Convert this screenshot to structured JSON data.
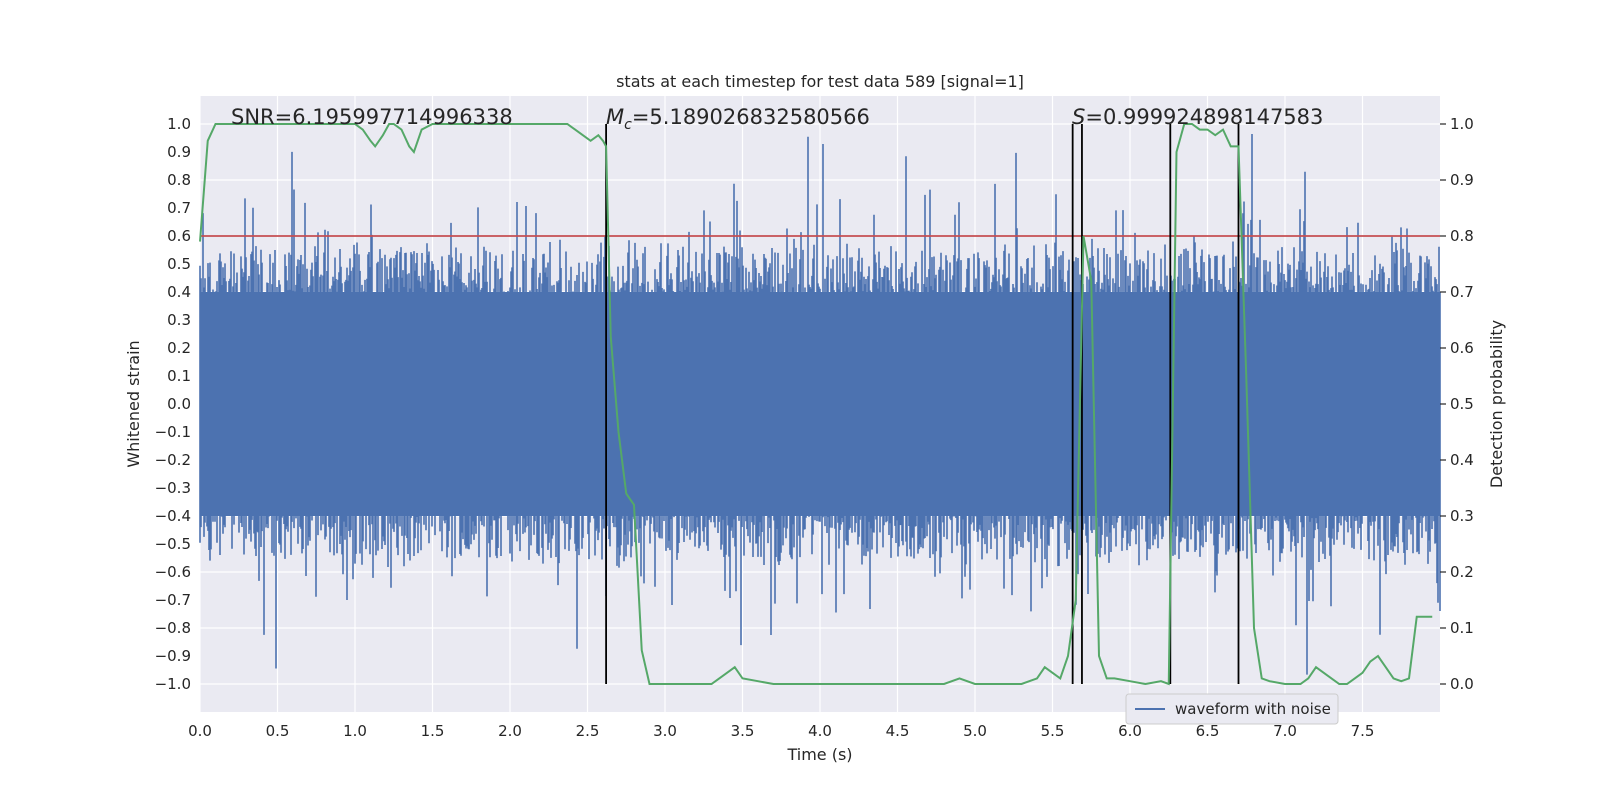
{
  "chart_data": {
    "type": "line",
    "title": "stats at each timestep for test data 589 [signal=1]",
    "xlabel": "Time (s)",
    "ylabel": "Whitened strain",
    "ylabel_right": "Detection probability",
    "xlim": [
      0.0,
      8.0
    ],
    "ylim": [
      -1.1,
      1.1
    ],
    "ylim_right": [
      -0.05,
      1.05
    ],
    "x_ticks": [
      "0.0",
      "0.5",
      "1.0",
      "1.5",
      "2.0",
      "2.5",
      "3.0",
      "3.5",
      "4.0",
      "4.5",
      "5.0",
      "5.5",
      "6.0",
      "6.5",
      "7.0",
      "7.5"
    ],
    "x_tick_values": [
      0,
      0.5,
      1,
      1.5,
      2,
      2.5,
      3,
      3.5,
      4,
      4.5,
      5,
      5.5,
      6,
      6.5,
      7,
      7.5
    ],
    "y_ticks": [
      "1.0",
      "0.9",
      "0.8",
      "0.7",
      "0.6",
      "0.5",
      "0.4",
      "0.3",
      "0.2",
      "0.1",
      "0.0",
      "−0.1",
      "−0.2",
      "−0.3",
      "−0.4",
      "−0.5",
      "−0.6",
      "−0.7",
      "−0.8",
      "−0.9",
      "−1.0"
    ],
    "y_tick_values": [
      1.0,
      0.9,
      0.8,
      0.7,
      0.6,
      0.5,
      0.4,
      0.3,
      0.2,
      0.1,
      0.0,
      -0.1,
      -0.2,
      -0.3,
      -0.4,
      -0.5,
      -0.6,
      -0.7,
      -0.8,
      -0.9,
      -1.0
    ],
    "y_right_ticks": [
      "1.0",
      "0.9",
      "0.8",
      "0.7",
      "0.6",
      "0.5",
      "0.4",
      "0.3",
      "0.2",
      "0.1",
      "0.0"
    ],
    "y_right_tick_values": [
      1.0,
      0.9,
      0.8,
      0.7,
      0.6,
      0.5,
      0.4,
      0.3,
      0.2,
      0.1,
      0.0
    ],
    "annotations": {
      "snr": "SNR=6.195997714996338",
      "mc_symbol": "M",
      "mc_sub": "c",
      "mc_value": "=5.189026832580566",
      "s_symbol": "S",
      "s_value": "=0.999924898147583"
    },
    "threshold": 0.6,
    "vertical_lines": [
      2.62,
      5.63,
      5.69,
      6.26,
      6.7
    ],
    "legend": [
      "waveform with noise"
    ],
    "series": [
      {
        "name": "waveform with noise",
        "color": "#4c72b0",
        "noise_band": [
          -0.4,
          0.4
        ],
        "spike_amplitude_max": 1.0
      },
      {
        "name": "detection probability",
        "axis": "right",
        "color": "#55a868",
        "x": [
          0.0,
          0.05,
          0.1,
          0.2,
          0.4,
          0.6,
          0.8,
          0.9,
          1.0,
          1.05,
          1.1,
          1.13,
          1.18,
          1.22,
          1.25,
          1.3,
          1.35,
          1.38,
          1.43,
          1.5,
          1.7,
          1.9,
          2.1,
          2.3,
          2.37,
          2.42,
          2.47,
          2.52,
          2.57,
          2.6,
          2.62,
          2.65,
          2.7,
          2.75,
          2.8,
          2.85,
          2.9,
          2.95,
          3.0,
          3.1,
          3.2,
          3.25,
          3.3,
          3.35,
          3.4,
          3.45,
          3.5,
          3.6,
          3.7,
          3.8,
          4.0,
          4.2,
          4.4,
          4.5,
          4.6,
          4.7,
          4.8,
          4.9,
          5.0,
          5.1,
          5.2,
          5.3,
          5.4,
          5.45,
          5.5,
          5.55,
          5.6,
          5.65,
          5.7,
          5.75,
          5.8,
          5.85,
          5.9,
          6.0,
          6.1,
          6.2,
          6.25,
          6.3,
          6.35,
          6.4,
          6.45,
          6.5,
          6.55,
          6.6,
          6.65,
          6.7,
          6.75,
          6.8,
          6.85,
          6.9,
          7.0,
          7.1,
          7.15,
          7.2,
          7.25,
          7.3,
          7.35,
          7.4,
          7.45,
          7.5,
          7.55,
          7.6,
          7.65,
          7.7,
          7.75,
          7.8,
          7.85,
          7.9,
          7.95
        ],
        "values": [
          0.79,
          0.97,
          1.0,
          1.0,
          1.0,
          1.0,
          1.0,
          1.0,
          1.0,
          0.99,
          0.97,
          0.96,
          0.98,
          1.0,
          1.0,
          0.99,
          0.96,
          0.95,
          0.99,
          1.0,
          1.0,
          1.0,
          1.0,
          1.0,
          1.0,
          0.99,
          0.98,
          0.97,
          0.98,
          0.97,
          0.96,
          0.62,
          0.45,
          0.34,
          0.32,
          0.06,
          0.0,
          0.0,
          0.0,
          0.0,
          0.0,
          0.0,
          0.0,
          0.01,
          0.02,
          0.03,
          0.01,
          0.005,
          0.0,
          0.0,
          0.0,
          0.0,
          0.0,
          0.0,
          0.0,
          0.0,
          0.0,
          0.01,
          0.0,
          0.0,
          0.0,
          0.0,
          0.01,
          0.03,
          0.02,
          0.01,
          0.05,
          0.15,
          0.8,
          0.72,
          0.05,
          0.01,
          0.01,
          0.005,
          0.0,
          0.005,
          0.0,
          0.95,
          1.0,
          1.0,
          0.99,
          0.99,
          0.98,
          0.99,
          0.96,
          0.96,
          0.55,
          0.1,
          0.01,
          0.005,
          0.0,
          0.0,
          0.01,
          0.03,
          0.02,
          0.01,
          0.0,
          0.0,
          0.01,
          0.02,
          0.04,
          0.05,
          0.03,
          0.01,
          0.005,
          0.01,
          0.12,
          0.12,
          0.12
        ]
      }
    ]
  }
}
